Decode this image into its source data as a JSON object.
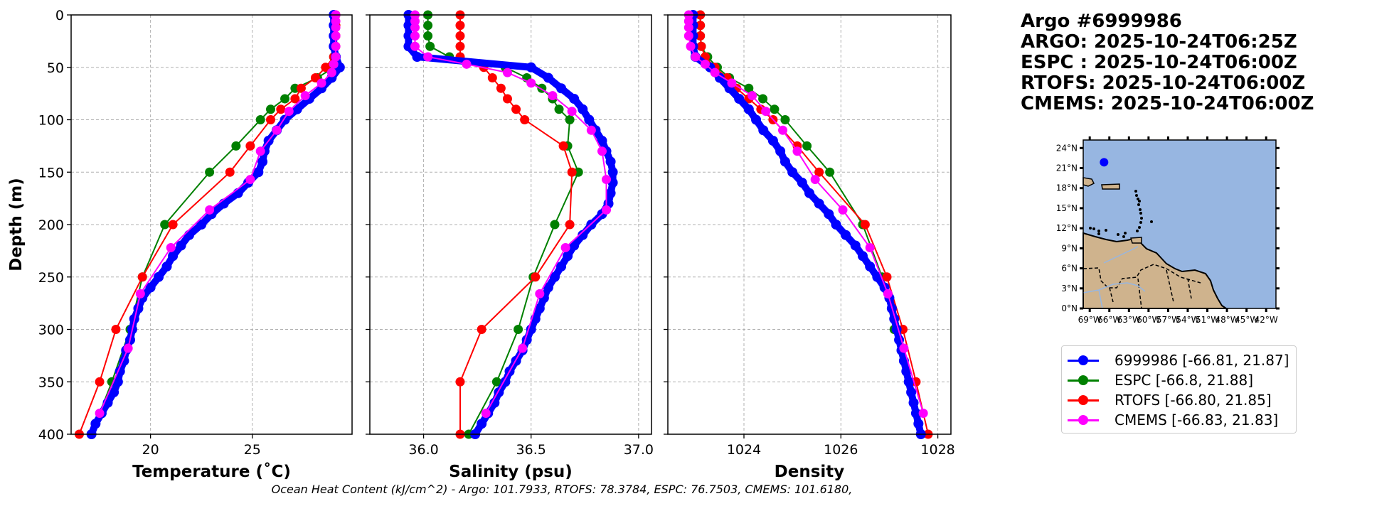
{
  "title": {
    "lines": [
      "Argo #6999986",
      "ARGO: 2025-10-24T06:25Z",
      "ESPC : 2025-10-24T06:00Z",
      "RTOFS: 2025-10-24T06:00Z",
      "CMEMS: 2025-10-24T06:00Z"
    ]
  },
  "footer": "Ocean Heat Content (kJ/cm^2) - Argo: 101.7933,  RTOFS: 78.3784,  ESPC: 76.7503,  CMEMS: 101.6180,",
  "legend": [
    {
      "label": "6999986 [-66.81, 21.87]",
      "color": "#0000ff"
    },
    {
      "label": "ESPC [-66.8, 21.88]",
      "color": "#008000"
    },
    {
      "label": "RTOFS [-66.80, 21.85]",
      "color": "#ff0000"
    },
    {
      "label": "CMEMS [-66.83, 21.83]",
      "color": "#ff00ff"
    }
  ],
  "chart_data": {
    "type": "line",
    "ylabel": "Depth (m)",
    "ylim": [
      400,
      0
    ],
    "yticks": [
      0,
      50,
      100,
      150,
      200,
      250,
      300,
      350,
      400
    ],
    "grid": true,
    "depths": {
      "argo": [
        0,
        10,
        20,
        30,
        40,
        50,
        60,
        70,
        80,
        90,
        100,
        110,
        120,
        130,
        140,
        150,
        160,
        170,
        180,
        190,
        200,
        210,
        220,
        230,
        240,
        250,
        260,
        270,
        280,
        290,
        300,
        310,
        320,
        330,
        340,
        350,
        360,
        370,
        380,
        390,
        400
      ],
      "espc": [
        0,
        10,
        20,
        30,
        40,
        50,
        60,
        70,
        80,
        90,
        100,
        125,
        150,
        200,
        250,
        300,
        350,
        400
      ],
      "rtofs": [
        0,
        10,
        20,
        30,
        40,
        50,
        60,
        70,
        80,
        90,
        100,
        125,
        150,
        200,
        250,
        300,
        350,
        400
      ],
      "cmems": [
        0,
        6,
        12,
        20,
        30,
        40,
        47,
        55,
        65,
        77,
        92,
        110,
        130,
        157,
        186,
        222,
        266,
        318,
        380
      ]
    },
    "panels": [
      {
        "xlabel": "Temperature (˚C)",
        "xlim": [
          16.1,
          29.9
        ],
        "xticks": [
          20,
          25
        ],
        "series": {
          "argo": [
            29.0,
            29.0,
            29.0,
            29.0,
            29.1,
            29.3,
            28.9,
            28.4,
            27.8,
            27.2,
            26.6,
            26.2,
            25.8,
            25.6,
            25.5,
            25.3,
            24.8,
            24.3,
            23.6,
            23.0,
            22.5,
            21.9,
            21.5,
            21.1,
            20.8,
            20.4,
            20.0,
            19.6,
            19.4,
            19.2,
            19.1,
            19.0,
            18.8,
            18.7,
            18.5,
            18.4,
            18.2,
            17.9,
            17.6,
            17.3,
            17.1
          ],
          "espc": [
            29.0,
            29.0,
            29.0,
            29.0,
            29.0,
            29.0,
            28.2,
            27.1,
            26.6,
            25.9,
            25.4,
            24.2,
            22.9,
            20.7,
            19.6,
            19.0,
            18.1,
            17.1
          ],
          "rtofs": [
            29.1,
            29.1,
            29.1,
            29.1,
            29.0,
            28.6,
            28.1,
            27.4,
            27.1,
            26.4,
            25.9,
            24.9,
            23.9,
            21.1,
            19.6,
            18.3,
            17.5,
            16.5
          ],
          "cmems": [
            29.1,
            29.1,
            29.1,
            29.1,
            29.1,
            29.1,
            29.0,
            28.9,
            28.4,
            27.6,
            26.8,
            26.2,
            25.4,
            24.9,
            22.9,
            21.0,
            19.5,
            18.9,
            17.5
          ]
        }
      },
      {
        "xlabel": "Salinity (psu)",
        "xlim": [
          35.75,
          37.06
        ],
        "xticks": [
          "36.0",
          "36.5",
          "37.0"
        ],
        "series": {
          "argo": [
            35.93,
            35.93,
            35.93,
            35.93,
            35.97,
            36.5,
            36.58,
            36.64,
            36.7,
            36.74,
            36.77,
            36.8,
            36.83,
            36.85,
            36.87,
            36.88,
            36.88,
            36.87,
            36.86,
            36.83,
            36.78,
            36.74,
            36.7,
            36.67,
            36.64,
            36.61,
            36.58,
            36.56,
            36.54,
            36.52,
            36.5,
            36.48,
            36.46,
            36.43,
            36.4,
            36.38,
            36.35,
            36.33,
            36.3,
            36.27,
            36.24
          ],
          "espc": [
            36.02,
            36.02,
            36.02,
            36.03,
            36.12,
            36.38,
            36.48,
            36.55,
            36.6,
            36.63,
            36.68,
            36.67,
            36.72,
            36.61,
            36.51,
            36.44,
            36.34,
            36.21
          ],
          "rtofs": [
            36.17,
            36.17,
            36.17,
            36.17,
            36.17,
            36.28,
            36.32,
            36.36,
            36.39,
            36.43,
            36.47,
            36.65,
            36.69,
            36.68,
            36.52,
            36.27,
            36.17,
            36.17
          ],
          "cmems": [
            35.96,
            35.96,
            35.96,
            35.96,
            35.96,
            36.02,
            36.2,
            36.39,
            36.5,
            36.6,
            36.69,
            36.78,
            36.83,
            36.85,
            36.85,
            36.66,
            36.54,
            36.46,
            36.29
          ]
        }
      },
      {
        "xlabel": "Density",
        "xlim": [
          1022.43,
          1028.27
        ],
        "xticks": [
          1024,
          1026,
          1028
        ],
        "series": {
          "argo": [
            1022.95,
            1022.95,
            1022.95,
            1022.95,
            1023.0,
            1023.3,
            1023.5,
            1023.7,
            1023.9,
            1024.1,
            1024.25,
            1024.4,
            1024.6,
            1024.75,
            1024.85,
            1025.0,
            1025.2,
            1025.35,
            1025.55,
            1025.75,
            1025.9,
            1026.1,
            1026.3,
            1026.45,
            1026.6,
            1026.75,
            1026.9,
            1027.0,
            1027.05,
            1027.1,
            1027.15,
            1027.2,
            1027.25,
            1027.3,
            1027.35,
            1027.4,
            1027.45,
            1027.5,
            1027.55,
            1027.6,
            1027.65
          ],
          "espc": [
            1023.1,
            1023.1,
            1023.1,
            1023.12,
            1023.25,
            1023.45,
            1023.7,
            1024.1,
            1024.39,
            1024.63,
            1024.85,
            1025.3,
            1025.77,
            1026.45,
            1026.85,
            1027.1,
            1027.4,
            1027.66
          ],
          "rtofs": [
            1023.1,
            1023.1,
            1023.1,
            1023.12,
            1023.2,
            1023.4,
            1023.65,
            1023.85,
            1024.1,
            1024.35,
            1024.6,
            1025.1,
            1025.55,
            1026.5,
            1026.95,
            1027.28,
            1027.55,
            1027.8
          ],
          "cmems": [
            1022.86,
            1022.86,
            1022.86,
            1022.86,
            1022.9,
            1023.0,
            1023.2,
            1023.4,
            1023.75,
            1024.17,
            1024.45,
            1024.8,
            1025.1,
            1025.47,
            1026.04,
            1026.6,
            1026.97,
            1027.3,
            1027.7
          ]
        }
      }
    ],
    "colors": {
      "argo": "#0000ff",
      "espc": "#008000",
      "rtofs": "#ff0000",
      "cmems": "#ff00ff"
    },
    "map": {
      "lon_range": [
        -70,
        -40.5
      ],
      "lat_range": [
        0,
        25.2
      ],
      "lat_labels": [
        "0°N",
        "3°N",
        "6°N",
        "9°N",
        "12°N",
        "15°N",
        "18°N",
        "21°N",
        "24°N"
      ],
      "lon_labels": [
        "69°W",
        "66°W",
        "63°W",
        "60°W",
        "57°W",
        "54°W",
        "51°W",
        "48°W",
        "45°W",
        "42°W"
      ],
      "float_position": {
        "lon": -66.81,
        "lat": 21.87
      },
      "ocean_color": "#97b6e1",
      "land_color": "#cfb38d"
    }
  }
}
